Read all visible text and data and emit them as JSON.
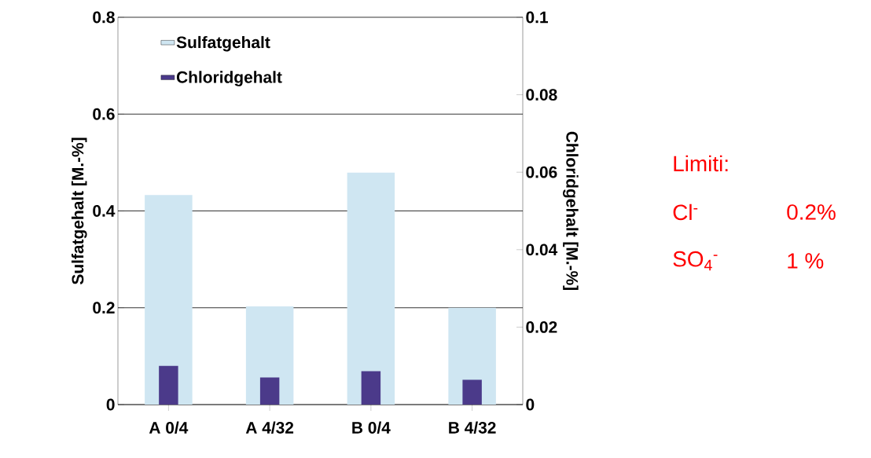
{
  "chart_data": {
    "type": "bar",
    "categories": [
      "A 0/4",
      "A 4/32",
      "B 0/4",
      "B 4/32"
    ],
    "series": [
      {
        "name": "Sulfatgehalt",
        "color": "#cfe6f2",
        "values": [
          0.433,
          0.203,
          0.479,
          0.2
        ]
      },
      {
        "name": "Chloridgehalt",
        "color": "#4b3a8a",
        "axis": "y2",
        "values": [
          0.01,
          0.007,
          0.0086,
          0.0064
        ]
      }
    ],
    "ylabel": "Sulfatgehalt [M.-%]",
    "y2label": "Chloridgehalt [M.-%]",
    "ylim": [
      0,
      0.8
    ],
    "yticks": [
      0,
      0.2,
      0.4,
      0.6,
      0.8
    ],
    "y2lim": [
      0,
      0.1
    ],
    "y2ticks": [
      0,
      0.02,
      0.04,
      0.06,
      0.08,
      0.1
    ],
    "grid": "y",
    "legend": "top left",
    "annotations": [
      "Limiti:",
      "Cl$^{-}$",
      "0.2%",
      "SO$_{4}$$^{-}$",
      "1 %"
    ]
  }
}
